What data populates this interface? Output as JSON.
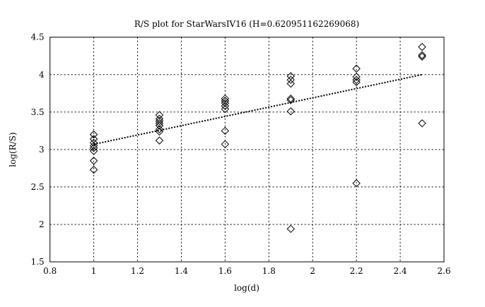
{
  "chart_data": {
    "type": "scatter",
    "title": "R/S plot for StarWarsIV16 (H=0.620951162269068)",
    "xlabel": "log(d)",
    "ylabel": "log(R/S)",
    "xlim": [
      0.8,
      2.6
    ],
    "ylim": [
      1.5,
      4.5
    ],
    "grid": true,
    "xticks": [
      "0.8",
      "1",
      "1.2",
      "1.4",
      "1.6",
      "1.8",
      "2",
      "2.2",
      "2.4",
      "2.6"
    ],
    "yticks": [
      "1.5",
      "2",
      "2.5",
      "3",
      "3.5",
      "4",
      "4.5"
    ],
    "series": [
      {
        "name": "R/S points",
        "marker": "diamond",
        "points": [
          [
            1,
            3.2
          ],
          [
            1,
            3.14
          ],
          [
            1,
            3.09
          ],
          [
            1,
            3.05
          ],
          [
            1,
            3.02
          ],
          [
            1,
            2.98
          ],
          [
            1,
            2.85
          ],
          [
            1,
            2.73
          ],
          [
            1.3,
            3.46
          ],
          [
            1.3,
            3.41
          ],
          [
            1.3,
            3.38
          ],
          [
            1.3,
            3.35
          ],
          [
            1.3,
            3.32
          ],
          [
            1.3,
            3.27
          ],
          [
            1.3,
            3.24
          ],
          [
            1.3,
            3.12
          ],
          [
            1.6,
            3.68
          ],
          [
            1.6,
            3.65
          ],
          [
            1.6,
            3.62
          ],
          [
            1.6,
            3.58
          ],
          [
            1.6,
            3.54
          ],
          [
            1.6,
            3.25
          ],
          [
            1.6,
            3.07
          ],
          [
            1.9,
            3.98
          ],
          [
            1.9,
            3.93
          ],
          [
            1.9,
            3.88
          ],
          [
            1.9,
            3.68
          ],
          [
            1.9,
            3.66
          ],
          [
            1.9,
            3.51
          ],
          [
            1.9,
            1.94
          ],
          [
            2.2,
            4.08
          ],
          [
            2.2,
            3.97
          ],
          [
            2.2,
            3.93
          ],
          [
            2.2,
            3.9
          ],
          [
            2.2,
            2.55
          ],
          [
            2.5,
            4.37
          ],
          [
            2.5,
            4.26
          ],
          [
            2.5,
            4.24
          ],
          [
            2.5,
            3.35
          ]
        ]
      },
      {
        "name": "fit",
        "type": "line",
        "style": "dotted",
        "points": [
          [
            1,
            3.07
          ],
          [
            2.5,
            4.0
          ]
        ]
      }
    ]
  }
}
